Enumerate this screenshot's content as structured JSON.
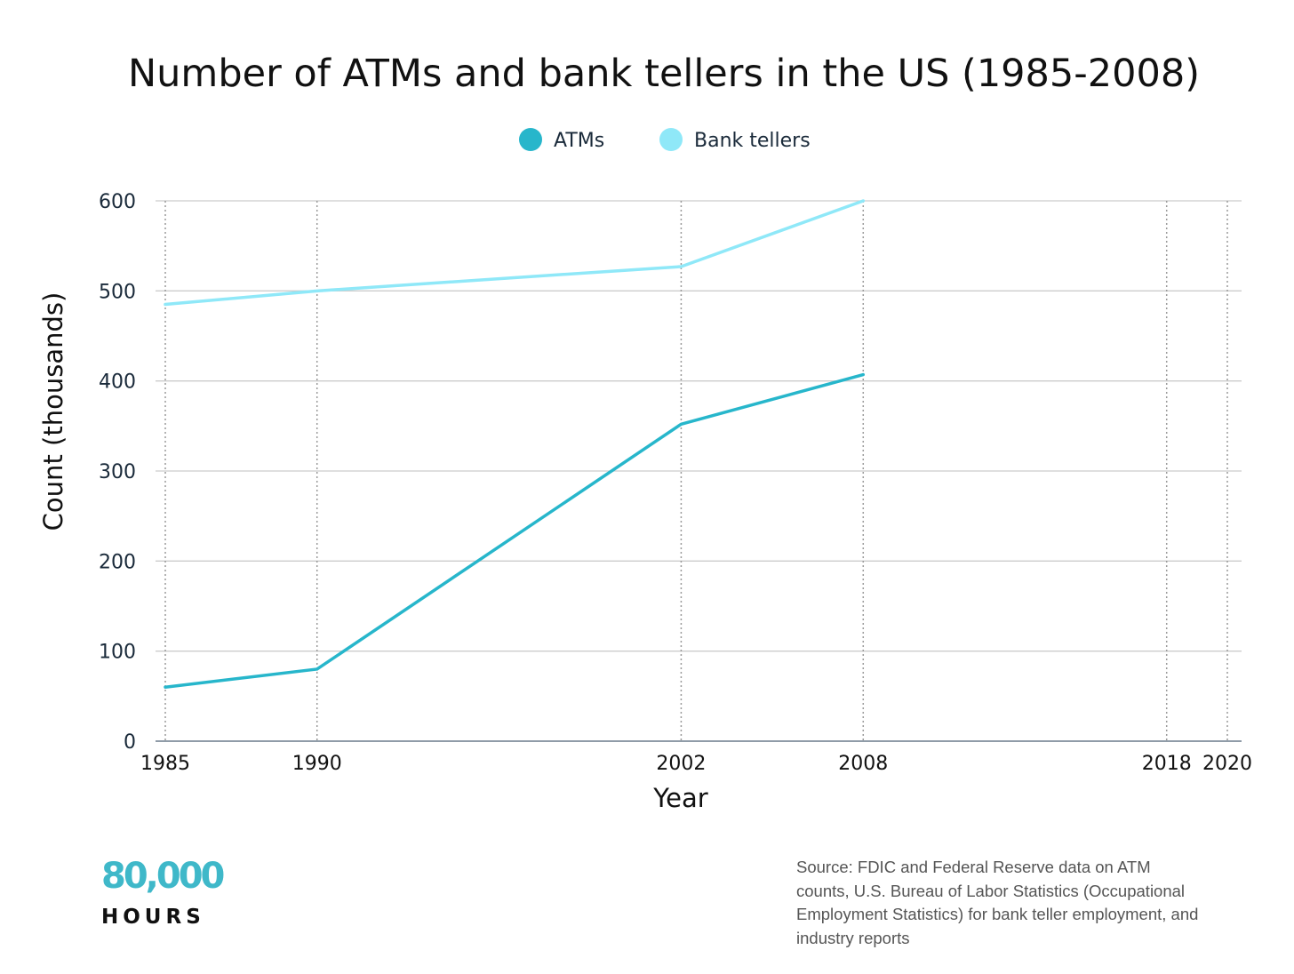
{
  "chart_data": {
    "type": "line",
    "title": "Number of ATMs and bank tellers in the US (1985-2008)",
    "xlabel": "Year",
    "ylabel": "Count (thousands)",
    "x_ticks": [
      1985,
      1990,
      2002,
      2008,
      2018,
      2020
    ],
    "xlim": [
      1985,
      2020
    ],
    "y_ticks": [
      0,
      100,
      200,
      300,
      400,
      500,
      600
    ],
    "ylim": [
      0,
      600
    ],
    "grid": true,
    "legend_position": "top-center",
    "series": [
      {
        "name": "ATMs",
        "color": "#27b6cb",
        "x": [
          1985,
          1990,
          2002,
          2008
        ],
        "values": [
          60,
          80,
          352,
          407
        ]
      },
      {
        "name": "Bank tellers",
        "color": "#8fe8f8",
        "x": [
          1985,
          1990,
          2002,
          2008
        ],
        "values": [
          485,
          500,
          527,
          600
        ]
      }
    ]
  },
  "footer": {
    "logo_number": "80,000",
    "logo_word": "HOURS",
    "source_text": "Source: FDIC and Federal Reserve data on ATM counts, U.S. Bureau of Labor Statistics (Occupational Employment Statistics) for bank teller employment, and industry reports"
  },
  "colors": {
    "axis_text": "#1a2a3a",
    "grid": "#cccccc",
    "logo": "#3fb8c9"
  }
}
